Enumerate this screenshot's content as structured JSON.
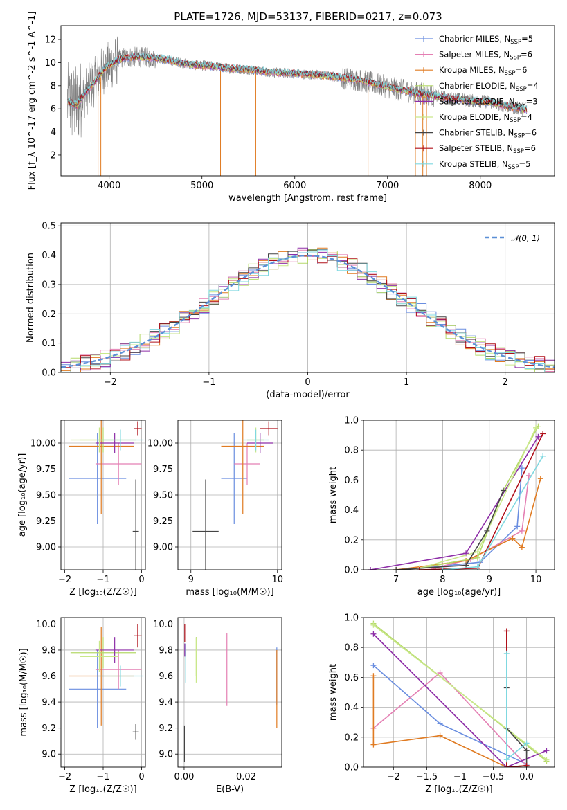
{
  "figure": {
    "title": "PLATE=1726, MJD=53137, FIBERID=0217, z=0.073"
  },
  "colors": {
    "Chabrier MILES": "#6a8ee0",
    "Salpeter MILES": "#e47fb3",
    "Kroupa MILES": "#e07b22",
    "Chabrier ELODIE": "#b5d96a",
    "Salpeter ELODIE": "#8e2ea8",
    "Kroupa ELODIE": "#c9e88a",
    "Chabrier STELIB": "#444444",
    "Salpeter STELIB": "#b0101a",
    "Kroupa STELIB": "#7fd8e0",
    "data": "#808080",
    "gauss": "#5b8fd6"
  },
  "chart_data": [
    {
      "type": "line",
      "panel": "spectrum",
      "title": "PLATE=1726, MJD=53137, FIBERID=0217, z=0.073",
      "xlabel": "wavelength [Angstrom, rest frame]",
      "ylabel": "Flux [f_λ 10^-17 erg cm^-2 s^-1 A^-1]",
      "xlim": [
        3480,
        8800
      ],
      "ylim": [
        0.2,
        13.2
      ],
      "xticks": [
        4000,
        5000,
        6000,
        7000,
        8000
      ],
      "yticks": [
        2,
        4,
        6,
        8,
        10,
        12
      ],
      "grid": false,
      "legend_position": "top-right",
      "legend": [
        {
          "label": "Chabrier MILES, N",
          "sub": "SSP",
          "tail": "=5"
        },
        {
          "label": "Salpeter MILES, N",
          "sub": "SSP",
          "tail": "=6"
        },
        {
          "label": "Kroupa MILES, N",
          "sub": "SSP",
          "tail": "=6"
        },
        {
          "label": "Chabrier ELODIE, N",
          "sub": "SSP",
          "tail": "=4"
        },
        {
          "label": "Salpeter ELODIE, N",
          "sub": "SSP",
          "tail": "=3"
        },
        {
          "label": "Kroupa ELODIE, N",
          "sub": "SSP",
          "tail": "=4"
        },
        {
          "label": "Chabrier STELIB, N",
          "sub": "SSP",
          "tail": "=6"
        },
        {
          "label": "Salpeter STELIB, N",
          "sub": "SSP",
          "tail": "=6"
        },
        {
          "label": "Kroupa STELIB, N",
          "sub": "SSP",
          "tail": "=5"
        }
      ],
      "model_continuum": {
        "x": [
          3550,
          3650,
          3750,
          3850,
          3950,
          4050,
          4150,
          4300,
          4500,
          4700,
          4900,
          5100,
          5300,
          5500,
          5700,
          5900,
          6100,
          6300,
          6500,
          6700,
          6900,
          7100,
          7300,
          7500,
          7700,
          7900,
          8100,
          8300,
          8500
        ],
        "y": [
          6.6,
          6.3,
          7.5,
          8.4,
          9.5,
          10.0,
          10.4,
          10.5,
          10.4,
          10.1,
          9.8,
          9.7,
          9.5,
          9.4,
          9.2,
          9.1,
          9.0,
          8.9,
          8.7,
          8.5,
          8.1,
          7.7,
          7.4,
          7.1,
          6.9,
          6.7,
          6.6,
          6.2,
          5.9
        ]
      },
      "spikes": [
        {
          "x": 3880,
          "y": 0.2
        },
        {
          "x": 3910,
          "y": 0.2
        },
        {
          "x": 5200,
          "y": 0.2
        },
        {
          "x": 5580,
          "y": 0.2
        },
        {
          "x": 6790,
          "y": 0.2
        },
        {
          "x": 7300,
          "y": 0.2
        },
        {
          "x": 7380,
          "y": 0.2
        },
        {
          "x": 7420,
          "y": 0.2
        }
      ]
    },
    {
      "type": "line",
      "panel": "residual-histogram",
      "xlabel": "(data-model)/error",
      "ylabel": "Normed distribution",
      "xlim": [
        -2.5,
        2.5
      ],
      "ylim": [
        0,
        0.51
      ],
      "xticks": [
        -2,
        -1,
        0,
        1,
        2
      ],
      "yticks": [
        0.0,
        0.1,
        0.2,
        0.3,
        0.4,
        0.5
      ],
      "grid": true,
      "legend_position": "top-right",
      "legend": [
        "𝒩(0, 1)"
      ],
      "gaussian": {
        "mean": 0,
        "sigma": 1
      }
    },
    {
      "type": "scatter",
      "panel": "age-vs-Z",
      "xlabel": "Z [log₁₀(Z/Z☉)]",
      "ylabel": "age  [log₁₀(age/yr)]",
      "xlim": [
        -2.1,
        0.1
      ],
      "ylim": [
        8.78,
        10.22
      ],
      "xticks": [
        -2,
        -1,
        0
      ],
      "yticks": [
        9.0,
        9.25,
        9.5,
        9.75,
        10.0
      ],
      "grid": true,
      "points": [
        {
          "model": "Chabrier MILES",
          "x": -1.15,
          "y": 9.66,
          "xerr": 0.75,
          "yerr": 0.44
        },
        {
          "model": "Salpeter MILES",
          "x": -0.6,
          "y": 9.8,
          "xerr": 0.6,
          "yerr": 0.2
        },
        {
          "model": "Kroupa MILES",
          "x": -1.05,
          "y": 9.97,
          "xerr": 0.85,
          "yerr": 0.65
        },
        {
          "model": "Chabrier ELODIE",
          "x": -1.0,
          "y": 10.03,
          "xerr": 0.85,
          "yerr": 0.12
        },
        {
          "model": "Salpeter ELODIE",
          "x": -0.7,
          "y": 10.0,
          "xerr": 0.5,
          "yerr": 0.1
        },
        {
          "model": "Kroupa ELODIE",
          "x": -1.1,
          "y": 10.03,
          "xerr": 0.5,
          "yerr": 0.12
        },
        {
          "model": "Chabrier STELIB",
          "x": -0.15,
          "y": 9.15,
          "xerr": 0.08,
          "yerr": 0.5
        },
        {
          "model": "Salpeter STELIB",
          "x": -0.1,
          "y": 10.14,
          "xerr": 0.1,
          "yerr": 0.07
        },
        {
          "model": "Kroupa STELIB",
          "x": -0.55,
          "y": 10.03,
          "xerr": 0.6,
          "yerr": 0.1
        }
      ]
    },
    {
      "type": "scatter",
      "panel": "age-vs-mass",
      "xlabel": "mass [log₁₀(M/M☉)]",
      "xlim": [
        8.85,
        10.05
      ],
      "ylim": [
        8.78,
        10.22
      ],
      "xticks": [
        9,
        10
      ],
      "yticks": [
        9.0,
        9.25,
        9.5,
        9.75,
        10.0
      ],
      "grid": true,
      "points": [
        {
          "model": "Chabrier MILES",
          "x": 9.5,
          "y": 9.66,
          "xerr": 0.15,
          "yerr": 0.44
        },
        {
          "model": "Salpeter MILES",
          "x": 9.65,
          "y": 9.8,
          "xerr": 0.15,
          "yerr": 0.2
        },
        {
          "model": "Kroupa MILES",
          "x": 9.6,
          "y": 9.97,
          "xerr": 0.25,
          "yerr": 0.65
        },
        {
          "model": "Chabrier ELODIE",
          "x": 9.75,
          "y": 10.03,
          "xerr": 0.1,
          "yerr": 0.12
        },
        {
          "model": "Salpeter ELODIE",
          "x": 9.8,
          "y": 10.0,
          "xerr": 0.15,
          "yerr": 0.1
        },
        {
          "model": "Kroupa ELODIE",
          "x": 9.75,
          "y": 10.03,
          "xerr": 0.1,
          "yerr": 0.12
        },
        {
          "model": "Chabrier STELIB",
          "x": 9.17,
          "y": 9.15,
          "xerr": 0.15,
          "yerr": 0.5
        },
        {
          "model": "Salpeter STELIB",
          "x": 9.9,
          "y": 10.14,
          "xerr": 0.1,
          "yerr": 0.07
        },
        {
          "model": "Kroupa STELIB",
          "x": 9.75,
          "y": 10.03,
          "xerr": 0.15,
          "yerr": 0.1
        }
      ]
    },
    {
      "type": "line",
      "panel": "mass-weight-vs-age",
      "xlabel": "age  [log₁₀(age/yr)]",
      "ylabel": "mass weight",
      "xlim": [
        6.3,
        10.4
      ],
      "ylim": [
        0,
        1.0
      ],
      "xticks": [
        7,
        8,
        9,
        10
      ],
      "yticks": [
        0.0,
        0.2,
        0.4,
        0.6,
        0.8,
        1.0
      ],
      "grid": true,
      "series": [
        {
          "model": "Chabrier MILES",
          "x": [
            7.5,
            8.8,
            9.6,
            9.7
          ],
          "y": [
            0.01,
            0.05,
            0.29,
            0.68
          ]
        },
        {
          "model": "Salpeter MILES",
          "x": [
            7.8,
            8.6,
            9.7,
            9.85
          ],
          "y": [
            0.01,
            0.07,
            0.26,
            0.63
          ]
        },
        {
          "model": "Kroupa MILES",
          "x": [
            7.0,
            8.5,
            9.5,
            9.7,
            10.1
          ],
          "y": [
            0.0,
            0.06,
            0.21,
            0.15,
            0.61
          ]
        },
        {
          "model": "Chabrier ELODIE",
          "x": [
            7.5,
            8.75,
            9.3,
            10.05
          ],
          "y": [
            0.01,
            0.08,
            0.53,
            0.96
          ]
        },
        {
          "model": "Salpeter ELODIE",
          "x": [
            6.45,
            8.5,
            10.05
          ],
          "y": [
            0.0,
            0.11,
            0.89
          ]
        },
        {
          "model": "Kroupa ELODIE",
          "x": [
            7.5,
            8.75,
            10.0
          ],
          "y": [
            0.01,
            0.12,
            0.95
          ]
        },
        {
          "model": "Chabrier STELIB",
          "x": [
            7.0,
            8.5,
            8.95,
            9.3
          ],
          "y": [
            0.0,
            0.03,
            0.26,
            0.53
          ]
        },
        {
          "model": "Salpeter STELIB",
          "x": [
            7.5,
            8.75,
            10.15
          ],
          "y": [
            0.0,
            0.01,
            0.91
          ]
        },
        {
          "model": "Kroupa STELIB",
          "x": [
            8.0,
            8.75,
            10.15
          ],
          "y": [
            0.0,
            0.02,
            0.76
          ]
        }
      ]
    },
    {
      "type": "scatter",
      "panel": "mass-vs-Z",
      "xlabel": "Z [log₁₀(Z/Z☉)]",
      "ylabel": "mass [log₁₀(M/M☉)]",
      "xlim": [
        -2.1,
        0.1
      ],
      "ylim": [
        8.9,
        10.05
      ],
      "xticks": [
        -2,
        -1,
        0
      ],
      "yticks": [
        9.0,
        9.2,
        9.4,
        9.6,
        9.8,
        10.0
      ],
      "grid": true,
      "points": [
        {
          "model": "Chabrier MILES",
          "x": -1.15,
          "y": 9.5,
          "xerr": 0.75,
          "yerr": 0.3
        },
        {
          "model": "Salpeter MILES",
          "x": -0.6,
          "y": 9.65,
          "xerr": 0.6,
          "yerr": 0.15
        },
        {
          "model": "Kroupa MILES",
          "x": -1.05,
          "y": 9.6,
          "xerr": 0.85,
          "yerr": 0.38
        },
        {
          "model": "Chabrier ELODIE",
          "x": -1.0,
          "y": 9.78,
          "xerr": 0.85,
          "yerr": 0.12
        },
        {
          "model": "Salpeter ELODIE",
          "x": -0.7,
          "y": 9.8,
          "xerr": 0.5,
          "yerr": 0.1
        },
        {
          "model": "Kroupa ELODIE",
          "x": -1.1,
          "y": 9.75,
          "xerr": 0.5,
          "yerr": 0.12
        },
        {
          "model": "Chabrier STELIB",
          "x": -0.15,
          "y": 9.17,
          "xerr": 0.08,
          "yerr": 0.06
        },
        {
          "model": "Salpeter STELIB",
          "x": -0.1,
          "y": 9.91,
          "xerr": 0.1,
          "yerr": 0.09
        },
        {
          "model": "Kroupa STELIB",
          "x": -0.55,
          "y": 9.6,
          "xerr": 0.6,
          "yerr": 0.08
        }
      ]
    },
    {
      "type": "scatter",
      "panel": "mass-vs-EBV",
      "xlabel": "E(B-V)",
      "xlim": [
        -0.002,
        0.0315
      ],
      "ylim": [
        8.9,
        10.05
      ],
      "xticks": [
        0.0,
        0.02
      ],
      "yticks": [
        9.0,
        9.2,
        9.4,
        9.6,
        9.8,
        10.0
      ],
      "grid": true,
      "points": [
        {
          "model": "Chabrier MILES",
          "x": 0.0299,
          "y": 9.6,
          "yerr": 0.22
        },
        {
          "model": "Salpeter MILES",
          "x": 0.0138,
          "y": 9.65,
          "yerr": 0.28
        },
        {
          "model": "Kroupa MILES",
          "x": 0.0299,
          "y": 9.5,
          "yerr": 0.3
        },
        {
          "model": "Chabrier ELODIE",
          "x": 0.0039,
          "y": 9.75,
          "yerr": 0.15
        },
        {
          "model": "Salpeter ELODIE",
          "x": 0.0002,
          "y": 9.8,
          "yerr": 0.05
        },
        {
          "model": "Kroupa ELODIE",
          "x": 0.0039,
          "y": 9.72,
          "yerr": 0.17
        },
        {
          "model": "Chabrier STELIB",
          "x": 0.0001,
          "y": 9.08,
          "yerr": 0.14
        },
        {
          "model": "Salpeter STELIB",
          "x": 0.0002,
          "y": 9.93,
          "yerr": 0.07
        },
        {
          "model": "Kroupa STELIB",
          "x": 0.0005,
          "y": 9.7,
          "yerr": 0.15
        }
      ]
    },
    {
      "type": "line",
      "panel": "mass-weight-vs-Z",
      "xlabel": "Z [log₁₀(Z/Z☉)]",
      "ylabel": "mass weight",
      "xlim": [
        -2.45,
        0.42
      ],
      "ylim": [
        0,
        1.0
      ],
      "xticks": [
        -2.0,
        -1.5,
        -1.0,
        -0.5,
        0.0
      ],
      "yticks": [
        0.0,
        0.2,
        0.4,
        0.6,
        0.8,
        1.0
      ],
      "grid": true,
      "series": [
        {
          "model": "Chabrier MILES",
          "x": [
            -2.3,
            -1.3,
            0.0
          ],
          "y": [
            0.68,
            0.29,
            0.02
          ]
        },
        {
          "model": "Salpeter MILES",
          "x": [
            -2.3,
            -1.3,
            0.0
          ],
          "y": [
            0.26,
            0.63,
            0.01
          ]
        },
        {
          "model": "Kroupa MILES",
          "x": [
            -2.3,
            -2.3,
            -1.3,
            -0.3,
            0.0
          ],
          "y": [
            0.61,
            0.15,
            0.21,
            0.0,
            0.01
          ]
        },
        {
          "model": "Chabrier ELODIE",
          "x": [
            -2.3,
            0.3
          ],
          "y": [
            0.96,
            0.04
          ]
        },
        {
          "model": "Salpeter ELODIE",
          "x": [
            -2.3,
            -0.3,
            0.3
          ],
          "y": [
            0.89,
            0.0,
            0.11
          ]
        },
        {
          "model": "Kroupa ELODIE",
          "x": [
            -2.3,
            0.3
          ],
          "y": [
            0.95,
            0.05
          ]
        },
        {
          "model": "Chabrier STELIB",
          "x": [
            -0.3,
            -0.3,
            0.0,
            0.0
          ],
          "y": [
            0.53,
            0.26,
            0.11,
            0.0
          ]
        },
        {
          "model": "Salpeter STELIB",
          "x": [
            -0.3,
            -0.3,
            0.0
          ],
          "y": [
            0.91,
            0.0,
            0.01
          ]
        },
        {
          "model": "Kroupa STELIB",
          "x": [
            -0.3,
            -0.3,
            0.0
          ],
          "y": [
            0.76,
            0.05,
            0.16
          ]
        }
      ]
    }
  ]
}
